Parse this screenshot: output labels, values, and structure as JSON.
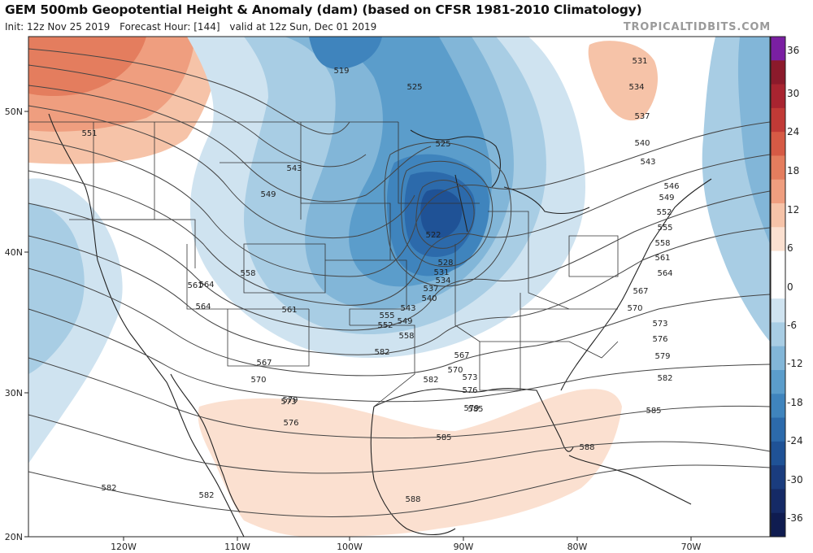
{
  "header": {
    "title": "GEM 500mb Geopotential Height & Anomaly (dam) (based on CFSR 1981-2010 Climatology)",
    "init": "Init: 12z Nov 25 2019",
    "forecast_hour": "Forecast Hour: [144]",
    "valid": "valid at 12z Sun, Dec 01 2019",
    "brand": "TROPICALTIDBITS.COM"
  },
  "map": {
    "lat_labels": [
      "50N",
      "40N",
      "30N",
      "20N"
    ],
    "lon_labels": [
      "120W",
      "110W",
      "100W",
      "90W",
      "80W",
      "70W"
    ],
    "contour_labels": [
      "519",
      "525",
      "525",
      "531",
      "534",
      "537",
      "540",
      "543",
      "546",
      "549",
      "552",
      "555",
      "558",
      "561",
      "564",
      "567",
      "570",
      "573",
      "576",
      "579",
      "582",
      "585",
      "588",
      "522",
      "528",
      "531",
      "534",
      "537",
      "540",
      "543",
      "549",
      "552",
      "555",
      "558",
      "561",
      "564",
      "567",
      "570",
      "573",
      "576",
      "579",
      "582",
      "582",
      "585",
      "588",
      "551",
      "543",
      "549",
      "558",
      "564",
      "561",
      "567",
      "570",
      "573",
      "576",
      "579",
      "582",
      "585",
      "582"
    ]
  },
  "colorbar": {
    "labels": [
      "36",
      "30",
      "24",
      "18",
      "12",
      "6",
      "0",
      "-6",
      "-12",
      "-18",
      "-24",
      "-30",
      "-36"
    ],
    "colors": [
      "#7a1fa2",
      "#8b1a2b",
      "#a82430",
      "#c13a36",
      "#d65a45",
      "#e47d5e",
      "#ef9e7f",
      "#f6c3a8",
      "#fbe0d0",
      "#ffffff",
      "#ffffff",
      "#cfe3f0",
      "#a8cde4",
      "#82b6d8",
      "#5b9dcb",
      "#3f84bd",
      "#2c6aab",
      "#1f5296",
      "#1a3c7e",
      "#152a66",
      "#0f1c50"
    ]
  }
}
